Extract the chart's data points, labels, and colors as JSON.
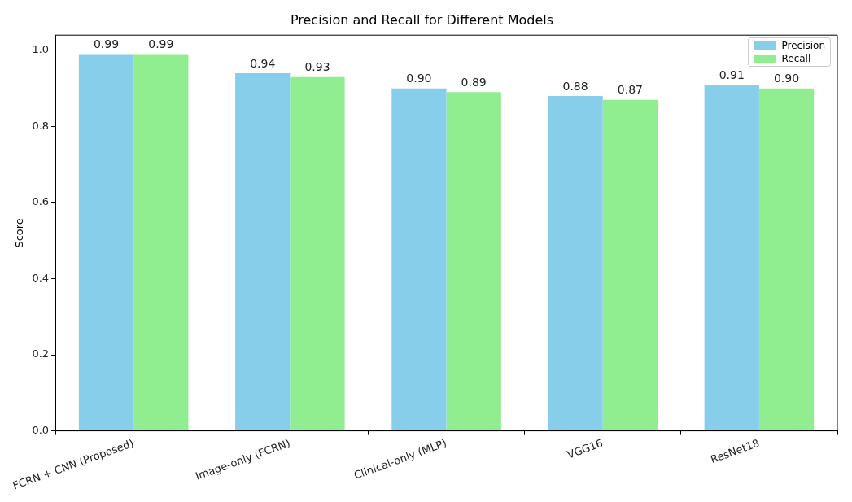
{
  "chart_data": {
    "type": "bar",
    "title": "Precision and Recall for Different Models",
    "ylabel": "Score",
    "categories": [
      "FCRN + CNN (Proposed)",
      "Image-only (FCRN)",
      "Clinical-only (MLP)",
      "VGG16",
      "ResNet18"
    ],
    "series": [
      {
        "name": "Precision",
        "color": "#87ceeb",
        "values": [
          0.99,
          0.94,
          0.9,
          0.88,
          0.91
        ],
        "value_labels": [
          "0.99",
          "0.94",
          "0.90",
          "0.88",
          "0.91"
        ]
      },
      {
        "name": "Recall",
        "color": "#90ee90",
        "values": [
          0.99,
          0.93,
          0.89,
          0.87,
          0.9
        ],
        "value_labels": [
          "0.99",
          "0.93",
          "0.89",
          "0.87",
          "0.90"
        ]
      }
    ],
    "ylim": [
      0,
      1.04
    ],
    "yticks": [
      {
        "value": 0,
        "label": "0.0"
      },
      {
        "value": 0.2,
        "label": "0.2"
      },
      {
        "value": 0.4,
        "label": "0.4"
      },
      {
        "value": 0.6,
        "label": "0.6"
      },
      {
        "value": 0.8,
        "label": "0.8"
      },
      {
        "value": 1.0,
        "label": "1.0"
      }
    ],
    "grid": false,
    "legend": "top right"
  }
}
